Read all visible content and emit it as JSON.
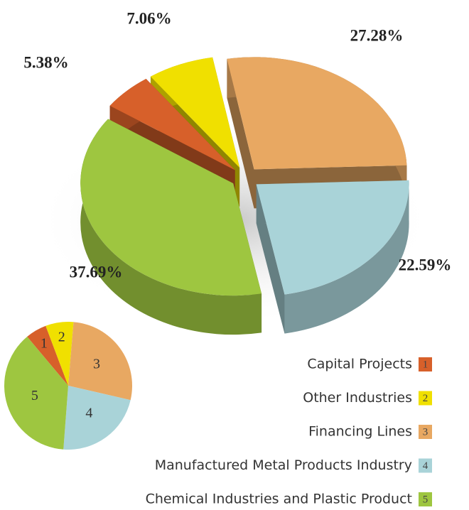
{
  "chart_data": {
    "type": "pie",
    "categories": [
      "Capital Projects",
      "Other Industries",
      "Financing Lines",
      "Manufactured Metal Products Industry",
      "Chemical Industries and Plastic Product"
    ],
    "values": [
      5.38,
      7.06,
      27.28,
      22.59,
      37.69
    ],
    "value_labels": [
      "5.38%",
      "7.06%",
      "27.28%",
      "22.59%",
      "37.69%"
    ],
    "colors": [
      "#d7602a",
      "#f0e000",
      "#e8a862",
      "#a9d3d8",
      "#9ec640"
    ],
    "legend_numbers": [
      "1",
      "2",
      "3",
      "4",
      "5"
    ]
  }
}
